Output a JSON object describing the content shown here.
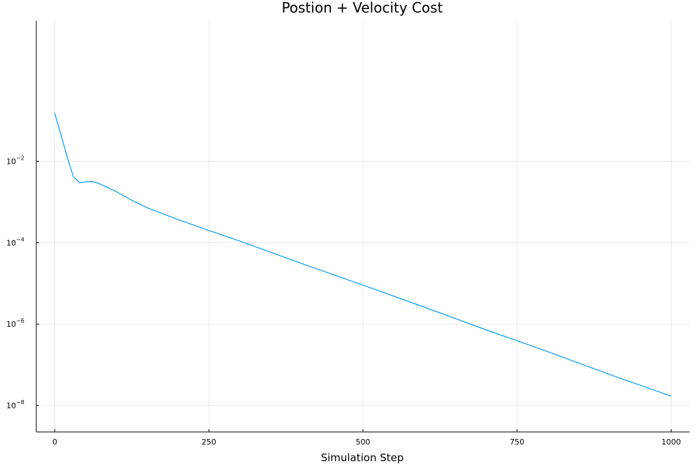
{
  "chart_data": {
    "type": "line",
    "title": "Postion + Velocity Cost",
    "xlabel": "Simulation Step",
    "ylabel": "",
    "xlim": [
      -30,
      1030
    ],
    "ylim_log10": [
      -8.65,
      1.45
    ],
    "y_scale": "log10",
    "grid": true,
    "legend": "none",
    "x_ticks": [
      0,
      250,
      500,
      750,
      1000
    ],
    "y_ticks": [
      {
        "exp": -2,
        "base": "10",
        "sup": "−2"
      },
      {
        "exp": -4,
        "base": "10",
        "sup": "−4"
      },
      {
        "exp": -6,
        "base": "10",
        "sup": "−6"
      },
      {
        "exp": -8,
        "base": "10",
        "sup": "−8"
      }
    ],
    "series": [
      {
        "color": "#009AFA",
        "x": [
          0,
          10,
          20,
          30,
          40,
          50,
          60,
          70,
          80,
          100,
          125,
          150,
          200,
          250,
          300,
          400,
          500,
          600,
          700,
          750,
          800,
          900,
          1000
        ],
        "y": [
          0.15,
          0.045,
          0.013,
          0.0042,
          0.003,
          0.0031,
          0.0032,
          0.0029,
          0.0025,
          0.0018,
          0.0011,
          0.00072,
          0.00037,
          0.0002,
          0.00011,
          3.1e-05,
          9.1e-06,
          2.6e-06,
          7.2e-07,
          3.9e-07,
          2.1e-07,
          5.8e-08,
          1.7e-08
        ]
      }
    ]
  }
}
